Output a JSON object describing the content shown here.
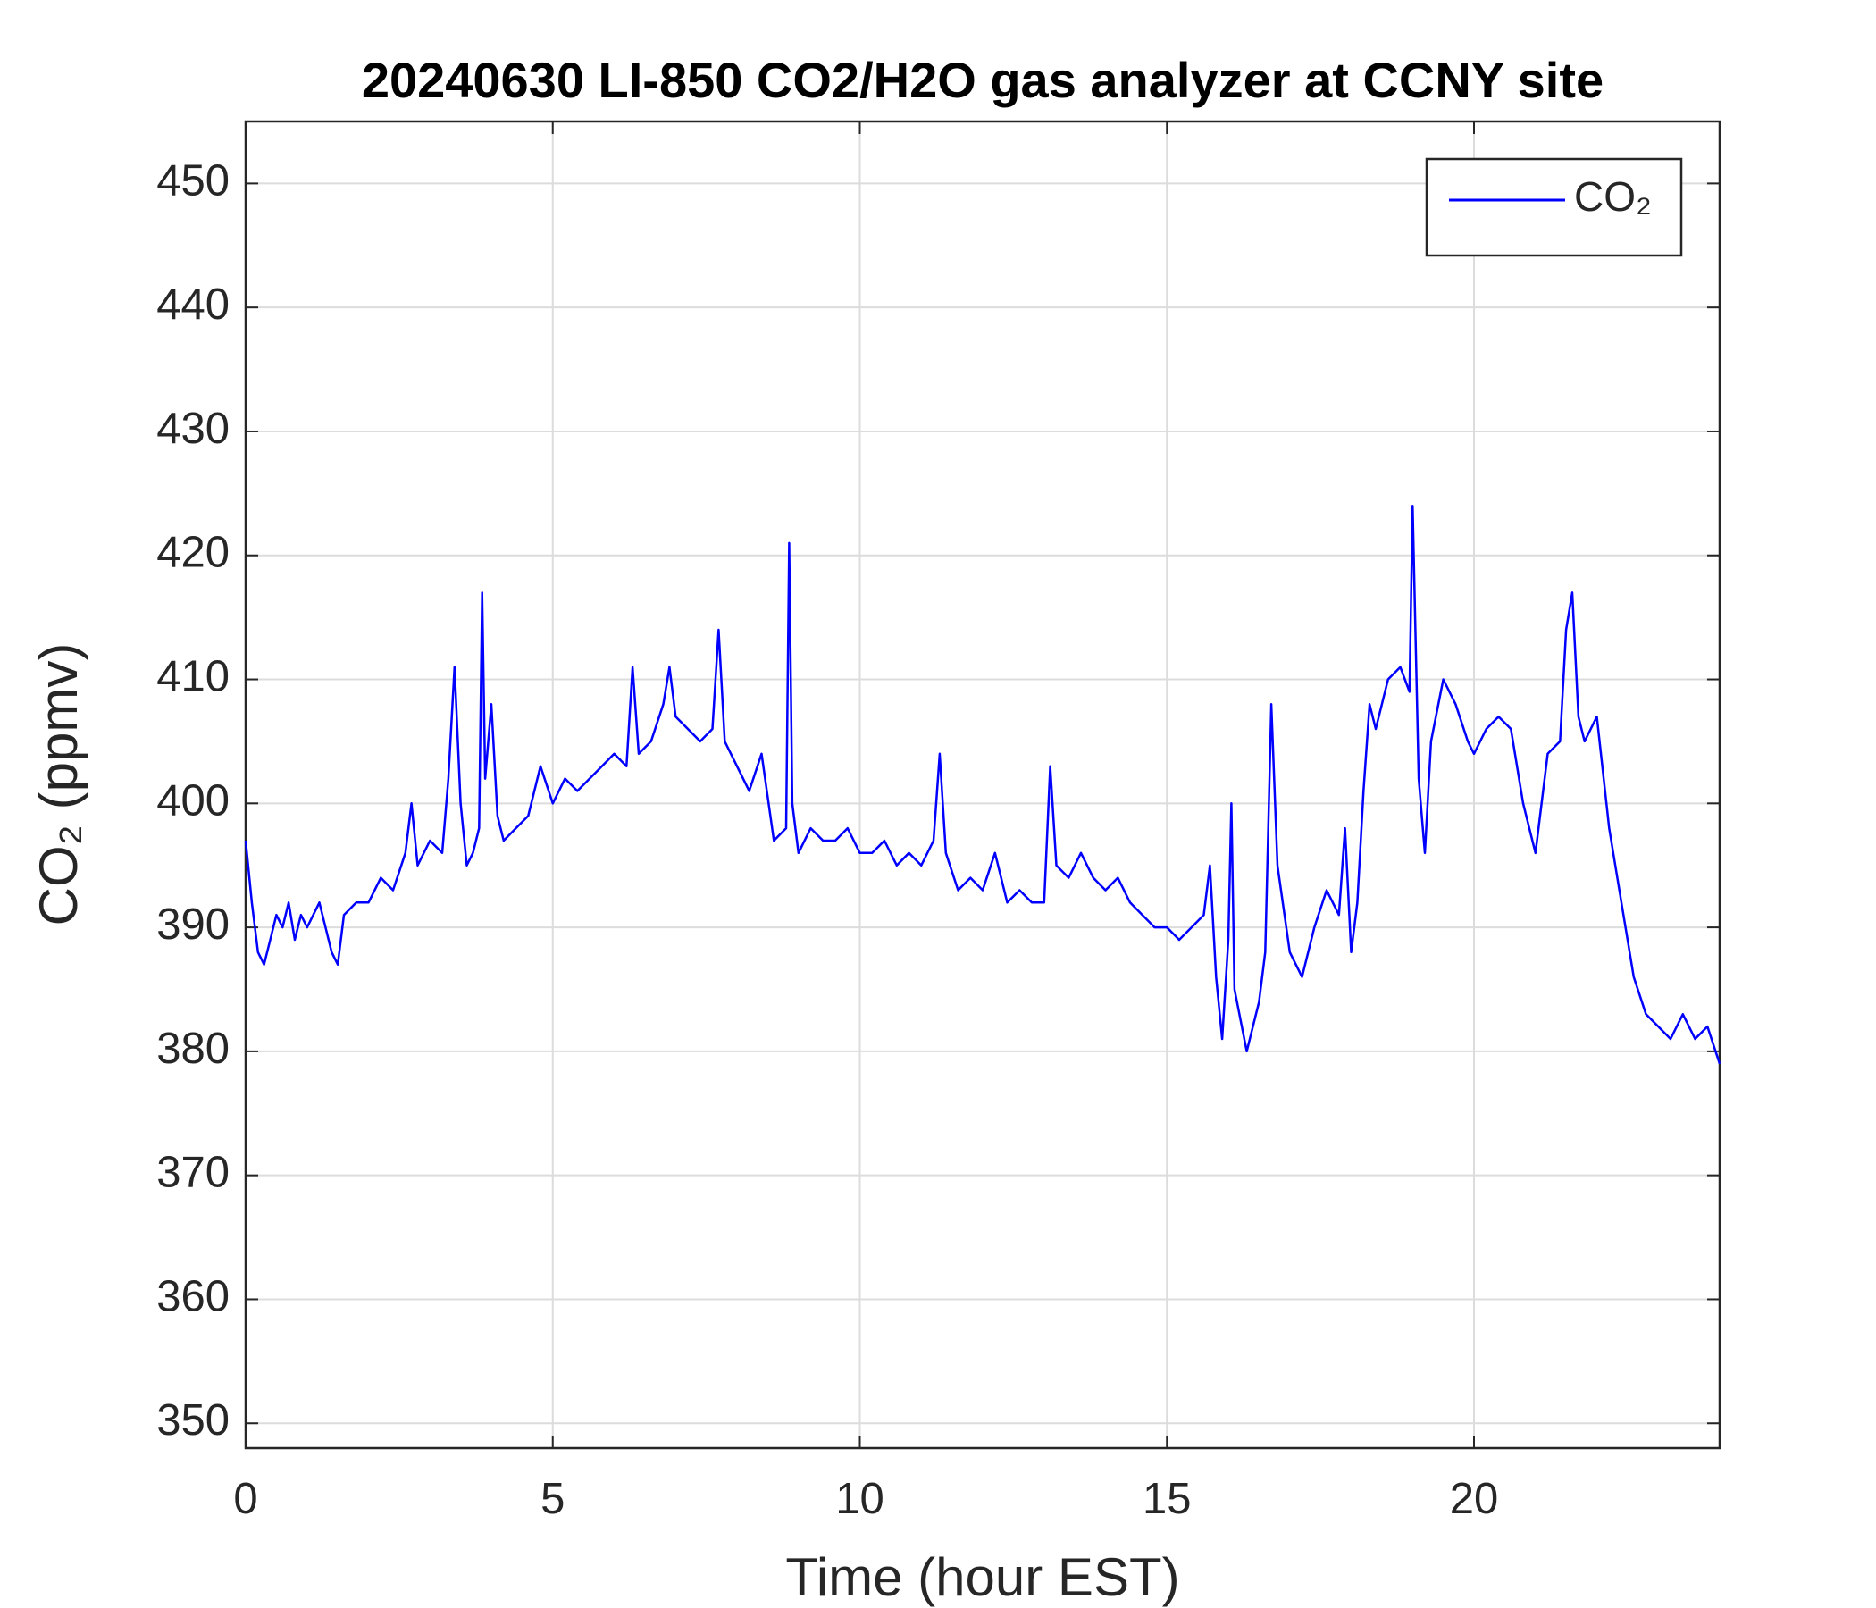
{
  "chart_data": {
    "type": "line",
    "title": "20240630 LI-850 CO2/H2O gas analyzer at CCNY site",
    "x_label": "Time (hour EST)",
    "y_label": "CO₂ (ppmv)",
    "xlim": [
      0,
      24
    ],
    "xticks": [
      0,
      5,
      10,
      15,
      20
    ],
    "ylim": [
      348,
      455
    ],
    "yticks": [
      350,
      360,
      370,
      380,
      390,
      400,
      410,
      420,
      430,
      440,
      450
    ],
    "grid": true,
    "legend": "top-right",
    "x": [
      0,
      0.1,
      0.2,
      0.3,
      0.4,
      0.5,
      0.6,
      0.7,
      0.8,
      0.9,
      1.0,
      1.2,
      1.4,
      1.5,
      1.6,
      1.8,
      2.0,
      2.2,
      2.4,
      2.6,
      2.7,
      2.8,
      3.0,
      3.2,
      3.3,
      3.4,
      3.5,
      3.6,
      3.7,
      3.8,
      3.85,
      3.9,
      4.0,
      4.1,
      4.2,
      4.4,
      4.6,
      4.8,
      5.0,
      5.2,
      5.4,
      5.6,
      5.8,
      6.0,
      6.2,
      6.3,
      6.4,
      6.6,
      6.8,
      6.9,
      7.0,
      7.2,
      7.4,
      7.6,
      7.7,
      7.8,
      8.0,
      8.2,
      8.4,
      8.6,
      8.8,
      8.85,
      8.9,
      9.0,
      9.2,
      9.4,
      9.6,
      9.8,
      10.0,
      10.2,
      10.4,
      10.6,
      10.8,
      11.0,
      11.2,
      11.3,
      11.4,
      11.6,
      11.8,
      12.0,
      12.2,
      12.4,
      12.6,
      12.8,
      13.0,
      13.1,
      13.2,
      13.4,
      13.6,
      13.8,
      14.0,
      14.2,
      14.4,
      14.6,
      14.8,
      15.0,
      15.2,
      15.4,
      15.6,
      15.7,
      15.8,
      15.9,
      16.0,
      16.05,
      16.1,
      16.3,
      16.5,
      16.6,
      16.7,
      16.8,
      17.0,
      17.2,
      17.4,
      17.6,
      17.8,
      17.9,
      18.0,
      18.1,
      18.2,
      18.3,
      18.4,
      18.6,
      18.8,
      18.95,
      19.0,
      19.1,
      19.2,
      19.3,
      19.5,
      19.7,
      19.9,
      20.0,
      20.2,
      20.4,
      20.6,
      20.8,
      21.0,
      21.2,
      21.4,
      21.5,
      21.6,
      21.7,
      21.8,
      22.0,
      22.2,
      22.4,
      22.6,
      22.8,
      23.0,
      23.2,
      23.4,
      23.6,
      23.8,
      24.0
    ],
    "series": [
      {
        "name": "CO₂",
        "color": "#0000ff",
        "values": [
          397,
          392,
          388,
          387,
          389,
          391,
          390,
          392,
          389,
          391,
          390,
          392,
          388,
          387,
          391,
          392,
          392,
          394,
          393,
          396,
          400,
          395,
          397,
          396,
          402,
          411,
          400,
          395,
          396,
          398,
          417,
          402,
          408,
          399,
          397,
          398,
          399,
          403,
          400,
          402,
          401,
          402,
          403,
          404,
          403,
          411,
          404,
          405,
          408,
          411,
          407,
          406,
          405,
          406,
          414,
          405,
          403,
          401,
          404,
          397,
          398,
          421,
          400,
          396,
          398,
          397,
          397,
          398,
          396,
          396,
          397,
          395,
          396,
          395,
          397,
          404,
          396,
          393,
          394,
          393,
          396,
          392,
          393,
          392,
          392,
          403,
          395,
          394,
          396,
          394,
          393,
          394,
          392,
          391,
          390,
          390,
          389,
          390,
          391,
          395,
          386,
          381,
          389,
          400,
          385,
          380,
          384,
          388,
          408,
          395,
          388,
          386,
          390,
          393,
          391,
          398,
          388,
          392,
          401,
          408,
          406,
          410,
          411,
          409,
          424,
          402,
          396,
          405,
          410,
          408,
          405,
          404,
          406,
          407,
          406,
          400,
          396,
          404,
          405,
          414,
          417,
          407,
          405,
          407,
          398,
          392,
          386,
          383,
          382,
          381,
          383,
          381,
          382,
          379
        ]
      }
    ]
  }
}
